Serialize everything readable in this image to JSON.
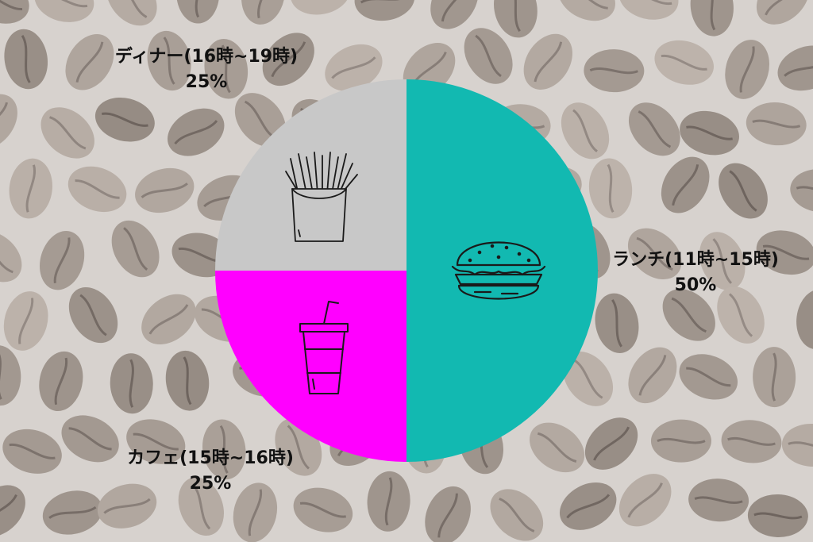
{
  "chart_data": {
    "type": "pie",
    "title": "",
    "slices": [
      {
        "label": "ランチ(11時~15時)",
        "value": 50,
        "value_label": "50%",
        "color": "#12b9b1",
        "icon": "hamburger-icon"
      },
      {
        "label": "カフェ(15時~16時)",
        "value": 25,
        "value_label": "25%",
        "color": "#ff00ff",
        "icon": "drink-cup-icon"
      },
      {
        "label": "ディナー(16時~19時)",
        "value": 25,
        "value_label": "25%",
        "color": "#c8c8c8",
        "icon": "french-fries-icon"
      }
    ],
    "start": "12 o'clock, clockwise",
    "background": "coffee-beans-photo"
  }
}
